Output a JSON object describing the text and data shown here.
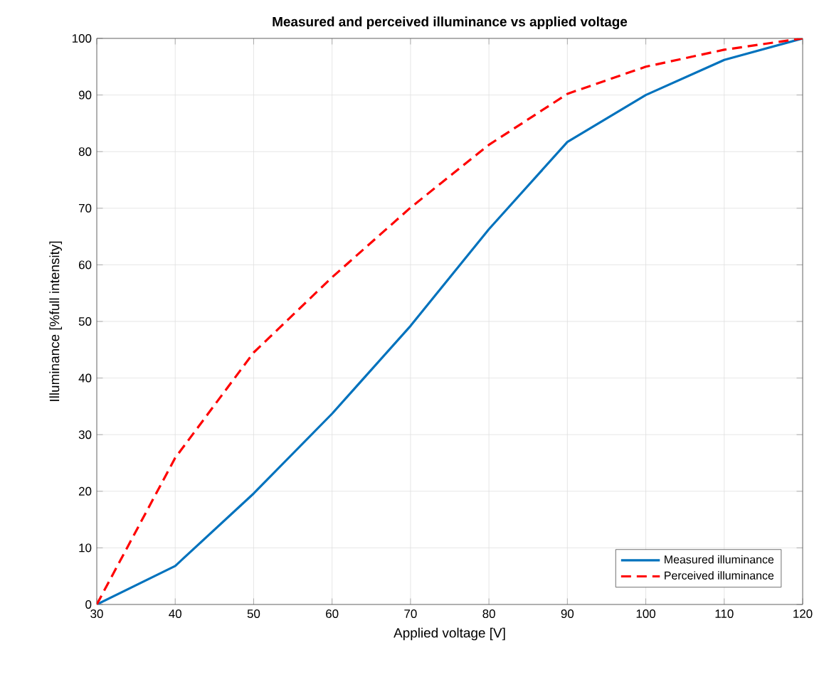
{
  "chart_data": {
    "type": "line",
    "title": "Measured and perceived illuminance vs applied voltage",
    "xlabel": "Applied voltage [V]",
    "ylabel": "Illuminance [%full intensity]",
    "x": [
      30,
      40,
      50,
      60,
      70,
      80,
      90,
      100,
      110,
      120
    ],
    "series": [
      {
        "name": "Measured illuminance",
        "color": "#0072bd",
        "line_style": "solid",
        "values": [
          0,
          6.8,
          19.6,
          33.7,
          49.2,
          66.3,
          81.7,
          90,
          96.2,
          100
        ]
      },
      {
        "name": "Perceived illuminance",
        "color": "#ff0000",
        "line_style": "dashed",
        "values": [
          0,
          25.9,
          44.5,
          57.8,
          70.1,
          81.2,
          90.2,
          95,
          98,
          100
        ]
      }
    ],
    "xlim": [
      30,
      120
    ],
    "ylim": [
      0,
      100
    ],
    "xticks": [
      30,
      40,
      50,
      60,
      70,
      80,
      90,
      100,
      110,
      120
    ],
    "yticks": [
      0,
      10,
      20,
      30,
      40,
      50,
      60,
      70,
      80,
      90,
      100
    ],
    "grid": true,
    "legend": "bottom right",
    "marker": "none"
  }
}
